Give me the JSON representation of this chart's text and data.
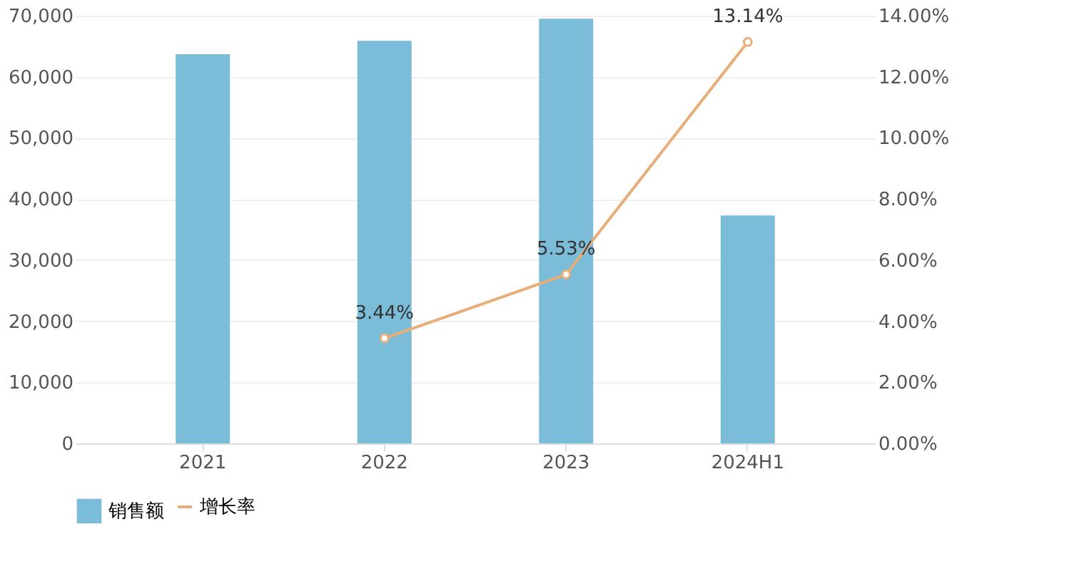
{
  "chart_data": {
    "type": "bar",
    "categories": [
      "2021",
      "2022",
      "2023",
      "2024H1"
    ],
    "series": [
      {
        "name": "销售额",
        "color": "#7bbcd9",
        "values": [
          63700,
          65900,
          69500,
          37300
        ]
      },
      {
        "name": "增长率",
        "type": "line",
        "axis": "y2",
        "color": "#e8ae79",
        "marker": "circle",
        "values": [
          null,
          3.44,
          5.53,
          13.14
        ],
        "value_labels": [
          null,
          "3.44%",
          "5.53%",
          "13.14%"
        ]
      }
    ],
    "ylim": [
      0,
      70000
    ],
    "yticks": [
      0,
      {
        "value": 10000,
        "label": "10,000"
      },
      {
        "value": 20000,
        "label": "20,000"
      },
      {
        "value": 30000,
        "label": "30,000"
      },
      {
        "value": 40000,
        "label": "40,000"
      },
      {
        "value": 50000,
        "label": "50,000"
      },
      {
        "value": 60000,
        "label": "60,000"
      },
      {
        "value": 70000,
        "label": "70,000"
      }
    ],
    "y2lim": [
      0,
      14
    ],
    "y2ticks": [
      {
        "value": 0,
        "label": "0.00%"
      },
      {
        "value": 2,
        "label": "2.00%"
      },
      {
        "value": 4,
        "label": "4.00%"
      },
      {
        "value": 6,
        "label": "6.00%"
      },
      {
        "value": 8,
        "label": "8.00%"
      },
      {
        "value": 10,
        "label": "10.00%"
      },
      {
        "value": 12,
        "label": "12.00%"
      },
      {
        "value": 14,
        "label": "14.00%"
      }
    ],
    "grid": "y",
    "legend": "bottom"
  }
}
